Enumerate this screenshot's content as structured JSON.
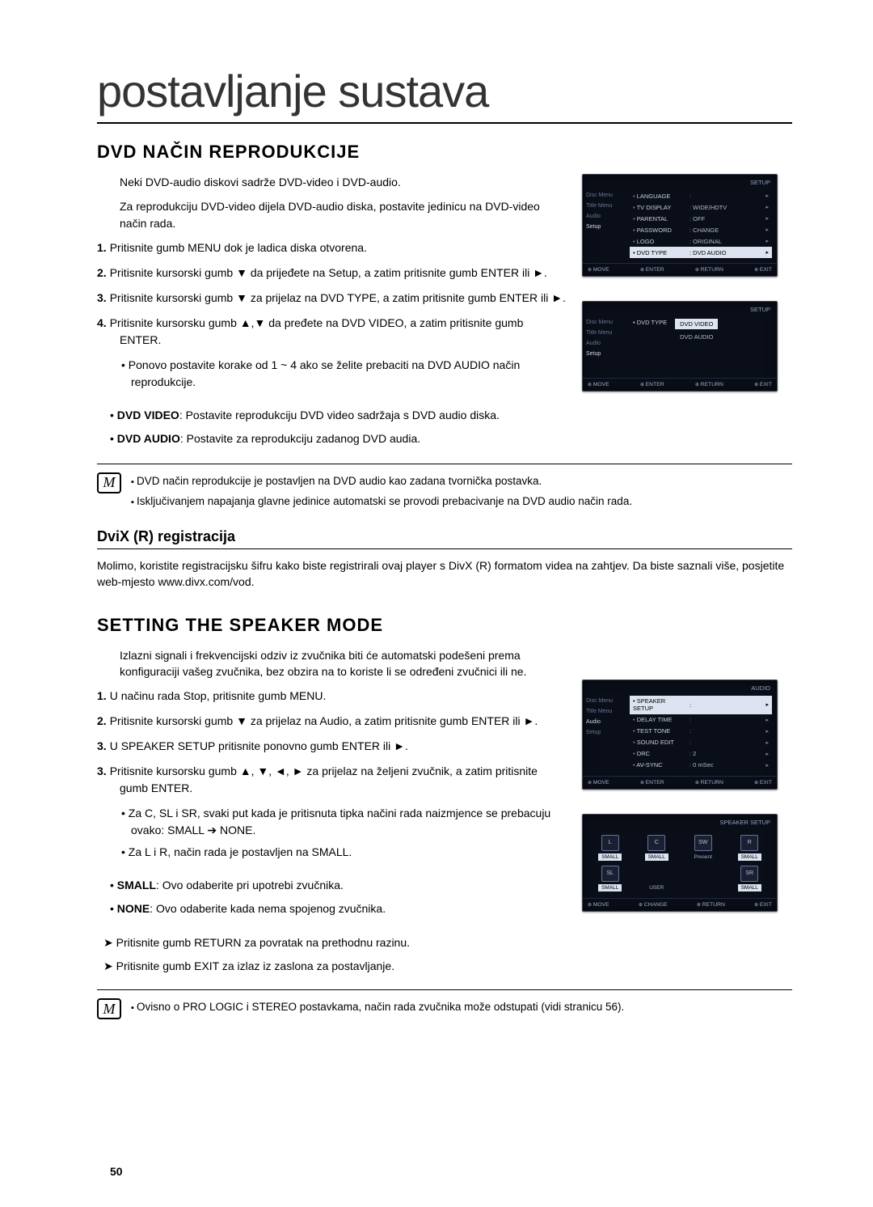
{
  "page": {
    "doc_title": "postavljanje sustava",
    "page_number": "50"
  },
  "section1": {
    "heading": "DVD NAČIN REPRODUKCIJE",
    "intro1": "Neki DVD-audio diskovi sadrže DVD-video i DVD-audio.",
    "intro2": "Za reprodukciju DVD-video dijela DVD-audio diska, postavite jedinicu na DVD-video način rada.",
    "step1_num": "1.",
    "step1": "Pritisnite gumb MENU dok je ladica diska otvorena.",
    "step2_num": "2.",
    "step2": "Pritisnite kursorski gumb ▼ da prijeđete na Setup, a zatim pritisnite gumb ENTER ili ►.",
    "step3_num": "3.",
    "step3": "Pritisnite kursorski gumb ▼  za prijelaz na DVD TYPE, a zatim pritisnite gumb ENTER ili ►.",
    "step4_num": "4.",
    "step4": "Pritisnite kursorsku gumb ▲,▼ da pređete na DVD VIDEO, a zatim pritisnite gumb ENTER.",
    "step4_sub": "Ponovo postavite korake od 1 ~ 4 ako se želite prebaciti na DVD AUDIO način reprodukcije.",
    "def1_label": "DVD VIDEO",
    "def1_text": ": Postavite reprodukciju DVD video sadržaja s DVD audio diska.",
    "def2_label": "DVD AUDIO",
    "def2_text": ": Postavite za reprodukciju zadanog DVD audia.",
    "note1": "DVD način reprodukcije je postavljen na DVD audio kao zadana tvornička postavka.",
    "note2": "Isključivanjem napajanja glavne jedinice automatski se provodi prebacivanje na DVD audio način rada."
  },
  "divx": {
    "heading": "DviX (R) registracija",
    "text": "Molimo, koristite registracijsku šifru kako biste registrirali ovaj player s DivX (R) formatom videa na zahtjev. Da biste saznali više, posjetite web-mjesto www.divx.com/vod."
  },
  "section2": {
    "heading": "SETTING THE SPEAKER MODE",
    "intro": "Izlazni signali i frekvencijski odziv iz zvučnika biti će automatski podešeni prema konfiguraciji vašeg zvučnika, bez obzira na to koriste li se određeni zvučnici ili ne.",
    "step1_num": "1.",
    "step1": "U načinu rada Stop, pritisnite gumb MENU.",
    "step2_num": "2.",
    "step2": "Pritisnite kursorski gumb ▼ za prijelaz na Audio, a zatim pritisnite gumb ENTER ili ►.",
    "step3a_num": "3.",
    "step3a": "U SPEAKER SETUP pritisnite ponovno gumb ENTER ili ►.",
    "step3b_num": "3.",
    "step3b": "Pritisnite kursorsku gumb ▲, ▼, ◄, ► za prijelaz na željeni zvučnik, a zatim pritisnite gumb ENTER.",
    "step3b_sub1": "Za C, SL i SR, svaki put kada je pritisnuta tipka načini rada naizmjence se prebacuju ovako: SMALL ➔ NONE.",
    "step3b_sub2": "Za L i R, način rada je postavljen na SMALL.",
    "def1_label": "SMALL",
    "def1_text": ": Ovo odaberite pri upotrebi zvučnika.",
    "def2_label": "NONE",
    "def2_text": ": Ovo odaberite kada nema spojenog zvučnika.",
    "arrow1": "Pritisnite gumb RETURN za povratak na prethodnu razinu.",
    "arrow2": "Pritisnite gumb EXIT za izlaz iz zaslona za postavljanje.",
    "note1": "Ovisno o PRO LOGIC i STEREO postavkama, način rada zvučnika može odstupati (vidi stranicu 56)."
  },
  "osd1": {
    "head_left": "",
    "head_right": "SETUP",
    "left_items": [
      "Disc Menu",
      "Title Menu",
      "Audio",
      "Setup"
    ],
    "rows": [
      {
        "lab": "LANGUAGE",
        "val": "",
        "hl": false
      },
      {
        "lab": "TV DISPLAY",
        "val": "WIDE/HDTV",
        "hl": false
      },
      {
        "lab": "PARENTAL",
        "val": "OFF",
        "hl": false
      },
      {
        "lab": "PASSWORD",
        "val": "CHANGE",
        "hl": false
      },
      {
        "lab": "LOGO",
        "val": "ORIGINAL",
        "hl": false
      },
      {
        "lab": "DVD TYPE",
        "val": "DVD AUDIO",
        "hl": true
      }
    ],
    "foot": [
      "MOVE",
      "ENTER",
      "RETURN",
      "EXIT"
    ]
  },
  "osd2": {
    "head_left": "",
    "head_right": "SETUP",
    "left_items": [
      "Disc Menu",
      "Title Menu",
      "Audio",
      "Setup"
    ],
    "type_label": "DVD TYPE",
    "opt_sel": "DVD VIDEO",
    "opt_other": "DVD AUDIO",
    "foot": [
      "MOVE",
      "ENTER",
      "RETURN",
      "EXIT"
    ]
  },
  "osd3": {
    "head_left": "",
    "head_right": "AUDIO",
    "left_items": [
      "Disc Menu",
      "Title Menu",
      "Audio",
      "Setup"
    ],
    "rows": [
      {
        "lab": "SPEAKER SETUP",
        "val": "",
        "hl": true
      },
      {
        "lab": "DELAY TIME",
        "val": "",
        "hl": false
      },
      {
        "lab": "TEST TONE",
        "val": "",
        "hl": false
      },
      {
        "lab": "SOUND EDIT",
        "val": "",
        "hl": false
      },
      {
        "lab": "DRC",
        "val": "2",
        "hl": false
      },
      {
        "lab": "AV-SYNC",
        "val": "0 mSec",
        "hl": false
      }
    ],
    "foot": [
      "MOVE",
      "ENTER",
      "RETURN",
      "EXIT"
    ]
  },
  "osd4": {
    "head_left": "",
    "head_right": "SPEAKER SETUP",
    "cells": [
      {
        "icon": "L",
        "lbl": "SMALL"
      },
      {
        "icon": "C",
        "lbl": "SMALL"
      },
      {
        "icon": "SW",
        "lbl": "Present",
        "plain": true
      },
      {
        "icon": "R",
        "lbl": "SMALL"
      },
      {
        "icon": "SL",
        "lbl": "SMALL"
      },
      {
        "icon": "",
        "lbl": "USER",
        "plain": true
      },
      {
        "icon": "",
        "lbl": ""
      },
      {
        "icon": "SR",
        "lbl": "SMALL"
      }
    ],
    "foot": [
      "MOVE",
      "CHANGE",
      "RETURN",
      "EXIT"
    ]
  },
  "colors": {
    "osd_bg": "#0a0e18",
    "osd_text": "#c8d0e0",
    "osd_highlight_bg": "#dde3f0",
    "osd_highlight_text": "#000000",
    "page_bg": "#ffffff",
    "text": "#000000"
  }
}
